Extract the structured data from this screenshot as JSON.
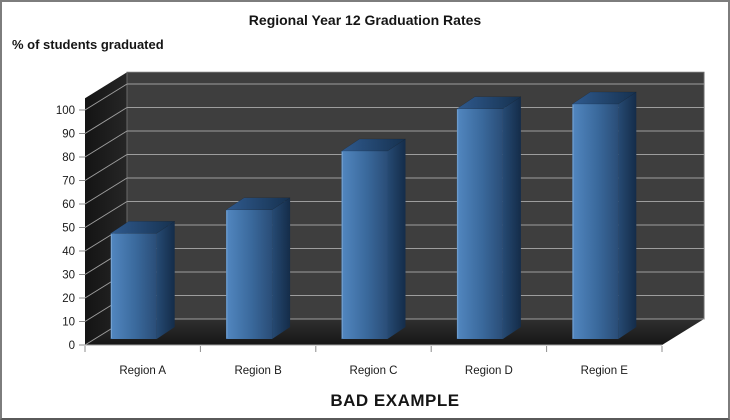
{
  "chart_data": {
    "type": "bar",
    "style": "3d-column",
    "title": "Regional Year 12 Graduation Rates",
    "ylabel": "% of students graduated",
    "xlabel": "",
    "annotation": "BAD EXAMPLE",
    "categories": [
      "Region A",
      "Region B",
      "Region C",
      "Region D",
      "Region E"
    ],
    "values": [
      45,
      55,
      80,
      98,
      100
    ],
    "ylim": [
      0,
      105
    ],
    "y_major_unit": 10,
    "y_tick_labels": [
      "0",
      "10",
      "20",
      "30",
      "40",
      "50",
      "60",
      "70",
      "80",
      "90",
      "100"
    ],
    "grid": true,
    "legend": "none",
    "colors": {
      "text": "#1a1a1a",
      "gridline": "#9d9d9d",
      "tick": "#8c8c8c",
      "back_wall": "#3e3e3e",
      "back_wall_edge": "#6a6a6a",
      "side_wall_light": "#262626",
      "side_wall_dark": "#141414",
      "floor_light": "#303030",
      "floor_dark": "#161616",
      "bar_front_light": "#5287c0",
      "bar_front_mid": "#3a699c",
      "bar_front_dark": "#2a4d77",
      "bar_side_light": "#264a73",
      "bar_side_dark": "#142c49",
      "bar_top_light": "#2f5a8e",
      "bar_top_dark": "#16314f",
      "bar_highlight": "#9dc0e4"
    }
  }
}
